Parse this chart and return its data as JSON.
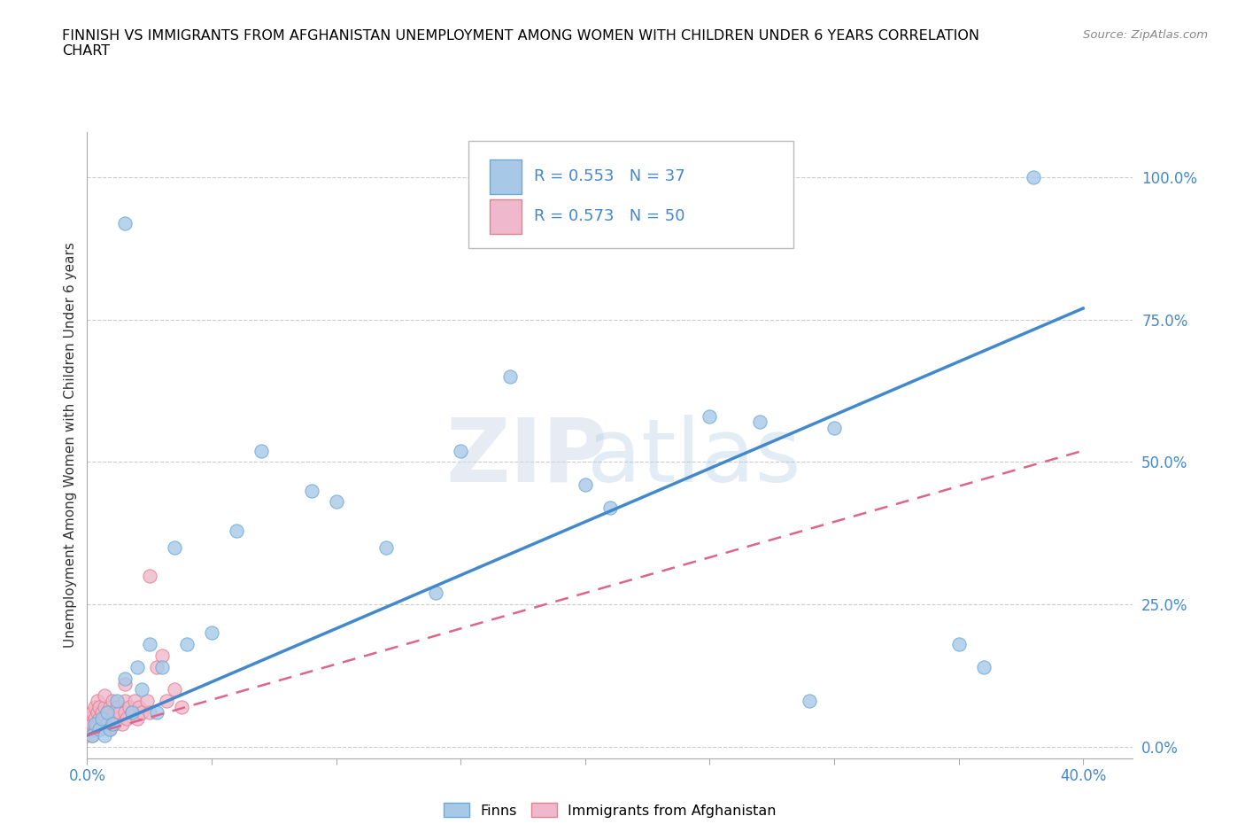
{
  "title": "FINNISH VS IMMIGRANTS FROM AFGHANISTAN UNEMPLOYMENT AMONG WOMEN WITH CHILDREN UNDER 6 YEARS CORRELATION\nCHART",
  "source_text": "Source: ZipAtlas.com",
  "ylabel": "Unemployment Among Women with Children Under 6 years",
  "xlim": [
    0.0,
    0.42
  ],
  "ylim": [
    -0.02,
    1.08
  ],
  "yticks": [
    0.0,
    0.25,
    0.5,
    0.75,
    1.0
  ],
  "ytick_labels": [
    "0.0%",
    "25.0%",
    "50.0%",
    "75.0%",
    "100.0%"
  ],
  "xticks": [
    0.0,
    0.05,
    0.1,
    0.15,
    0.2,
    0.25,
    0.3,
    0.35,
    0.4
  ],
  "xtick_labels": [
    "0.0%",
    "",
    "",
    "",
    "",
    "",
    "",
    "",
    "40.0%"
  ],
  "grid_color": "#cccccc",
  "background_color": "#ffffff",
  "finns_color": "#a8c8e8",
  "finns_edge_color": "#6aaad4",
  "finns_line_color": "#4488cc",
  "afghans_color": "#f0b8cc",
  "afghans_edge_color": "#e08090",
  "afghans_line_color": "#dd6688",
  "R_finns": 0.553,
  "N_finns": 37,
  "R_afghans": 0.573,
  "N_afghans": 50,
  "legend_label_finns": "Finns",
  "legend_label_afghans": "Immigrants from Afghanistan",
  "watermark_zip": "ZIP",
  "watermark_atlas": "atlas",
  "finns_x": [
    0.002,
    0.003,
    0.005,
    0.006,
    0.007,
    0.008,
    0.009,
    0.01,
    0.012,
    0.015,
    0.018,
    0.02,
    0.022,
    0.025,
    0.028,
    0.03,
    0.035,
    0.04,
    0.05,
    0.06,
    0.07,
    0.09,
    0.1,
    0.12,
    0.14,
    0.15,
    0.17,
    0.2,
    0.21,
    0.25,
    0.27,
    0.3,
    0.29,
    0.35,
    0.36,
    0.38,
    0.015
  ],
  "finns_y": [
    0.02,
    0.04,
    0.03,
    0.05,
    0.02,
    0.06,
    0.03,
    0.04,
    0.08,
    0.12,
    0.06,
    0.14,
    0.1,
    0.18,
    0.06,
    0.14,
    0.35,
    0.18,
    0.2,
    0.38,
    0.52,
    0.45,
    0.43,
    0.35,
    0.27,
    0.52,
    0.65,
    0.46,
    0.42,
    0.58,
    0.57,
    0.56,
    0.08,
    0.18,
    0.14,
    1.0,
    0.92
  ],
  "afghans_x": [
    0.0,
    0.001,
    0.001,
    0.002,
    0.002,
    0.002,
    0.003,
    0.003,
    0.003,
    0.004,
    0.004,
    0.004,
    0.005,
    0.005,
    0.005,
    0.006,
    0.006,
    0.007,
    0.007,
    0.007,
    0.008,
    0.008,
    0.009,
    0.009,
    0.01,
    0.01,
    0.011,
    0.011,
    0.012,
    0.012,
    0.013,
    0.014,
    0.015,
    0.015,
    0.016,
    0.017,
    0.018,
    0.019,
    0.02,
    0.021,
    0.022,
    0.024,
    0.025,
    0.028,
    0.03,
    0.032,
    0.035,
    0.038,
    0.015,
    0.025
  ],
  "afghans_y": [
    0.02,
    0.03,
    0.05,
    0.04,
    0.06,
    0.02,
    0.05,
    0.07,
    0.03,
    0.06,
    0.04,
    0.08,
    0.05,
    0.07,
    0.03,
    0.06,
    0.04,
    0.07,
    0.05,
    0.09,
    0.06,
    0.04,
    0.07,
    0.03,
    0.05,
    0.08,
    0.06,
    0.04,
    0.07,
    0.05,
    0.06,
    0.04,
    0.08,
    0.06,
    0.05,
    0.07,
    0.06,
    0.08,
    0.05,
    0.07,
    0.06,
    0.08,
    0.3,
    0.14,
    0.16,
    0.08,
    0.1,
    0.07,
    0.11,
    0.06
  ],
  "finns_line_x": [
    0.0,
    0.4
  ],
  "finns_line_y": [
    0.02,
    0.77
  ],
  "afghans_line_x": [
    0.0,
    0.4
  ],
  "afghans_line_y": [
    0.02,
    0.52
  ]
}
